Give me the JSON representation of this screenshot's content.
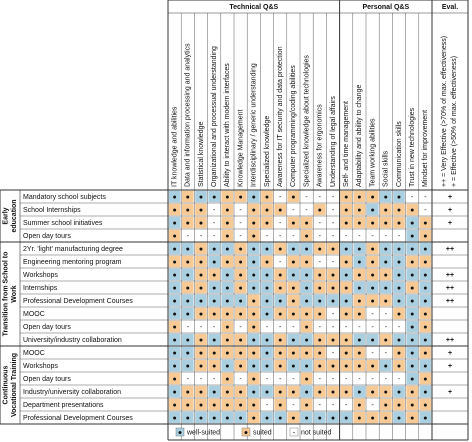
{
  "header": {
    "technical": "Technical Q&S",
    "personal": "Personal Q&S",
    "eval": "Eval.",
    "eval_legend": [
      "++ = Very Effective (>70% of max. effectiveness)",
      "+ = Effective (>50% of max. effectiveness)"
    ]
  },
  "columns": [
    "IT knowledge and abilities",
    "Data and information processing and analytics",
    "Statistical knowledge",
    "Organizational and processual understanding",
    "Ability to interact with modern interfaces",
    "Knowledge Management",
    "Interdisciplinary / generic understanding",
    "Specialized knowledge",
    "Awareness for IT security and data protection",
    "Computer programming/coding abilities",
    "Specialized knowledge about technologies",
    "Awareness for ergonomics",
    "Understanding of legal affairs",
    "Self- and time management",
    "Adaptability and ability to change",
    "Team working abilities",
    "Social skills",
    "Communication skills",
    "Trust in new technologies",
    "Mindset for improvement"
  ],
  "technical_count": 13,
  "legend": [
    {
      "code": "w",
      "label": "well-suited",
      "color": "#a9cfe0",
      "symbol": "●"
    },
    {
      "code": "s",
      "label": "suited",
      "color": "#f6c995",
      "symbol": "●"
    },
    {
      "code": "n",
      "label": "not suited",
      "color": "#ffffff",
      "symbol": "-"
    }
  ],
  "groups": [
    {
      "lines": [
        "Early",
        "education"
      ],
      "rows": [
        {
          "label": "Mandatory school subjects",
          "cells": "wswwsswsnsnnnssswwnn",
          "eval": "+"
        },
        {
          "label": "School Internships",
          "cells": "sssnsnsssnnsnsswsssn",
          "eval": "+"
        },
        {
          "label": "Summer school initiatives",
          "cells": "wssnsnssnssnnsssssws",
          "eval": "+"
        },
        {
          "label": "Open day tours",
          "cells": "snnnsnsnnnsnnnnnnnws",
          "eval": null
        }
      ]
    },
    {
      "lines": [
        "Transition from School to",
        "Work"
      ],
      "rows": [
        {
          "label": "2Yr. 'light' manufacturing degree",
          "cells": "wwswwswwswwsswwswwww",
          "eval": "++"
        },
        {
          "label": "Engineering mentoring program",
          "cells": "ssswsswsnssnnswswwss",
          "eval": null
        },
        {
          "label": "Workshops",
          "cells": "wwsswswwswwsswssswww",
          "eval": "++"
        },
        {
          "label": "Internships",
          "cells": "wsswwswwsswssswwwwsw",
          "eval": "++"
        },
        {
          "label": "Professional Development Courses",
          "cells": "wwwwwwswwswwwwssswww",
          "eval": "++"
        },
        {
          "label": "MOOC",
          "cells": "wwssssswssssnssnnsws",
          "eval": null
        },
        {
          "label": "Open day tours",
          "cells": "snnnsnsnnnsnnnnnnnws",
          "eval": null
        },
        {
          "label": "University/industry collaboration",
          "cells": "wwswsswwswwssswwswww",
          "eval": "++"
        }
      ]
    },
    {
      "lines": [
        "Continuous",
        "Vocational Training"
      ],
      "rows": [
        {
          "label": "MOOC",
          "cells": "wwssssswssssnssnnsws",
          "eval": "+"
        },
        {
          "label": "Workshops",
          "cells": "wwsswswwswwssssswsww",
          "eval": "+"
        },
        {
          "label": "Open day tours",
          "cells": "snnnsnsnnnsnnnnnnnws",
          "eval": null
        },
        {
          "label": "Industry/university collaboration",
          "cells": "wsswsswwsswssswsswsw",
          "eval": "+"
        },
        {
          "label": "Department presentations",
          "cells": "sssssssnsnsnnnsnssss",
          "eval": null
        },
        {
          "label": "Professional Development Courses",
          "cells": "wwwwwwswwswwwwssswsw",
          "eval": null
        }
      ]
    }
  ]
}
